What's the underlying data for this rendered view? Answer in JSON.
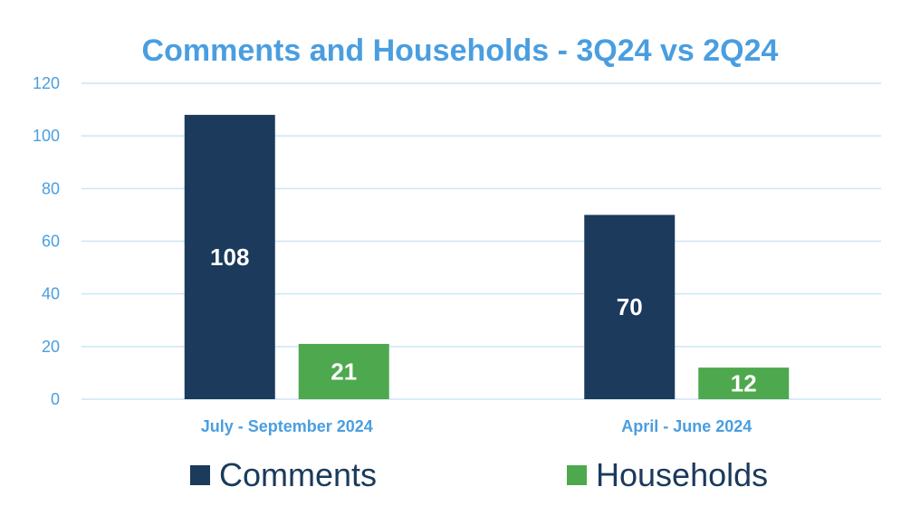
{
  "colors": {
    "title": "#4a9ee0",
    "axis_text": "#4a9ee0",
    "gridline": "#cbe6f4",
    "comments": "#1b3a5c",
    "households": "#4ea84e"
  },
  "chart_data": {
    "type": "bar",
    "title": "Comments and Households - 3Q24 vs 2Q24",
    "categories": [
      "July - September 2024",
      "April - June 2024"
    ],
    "series": [
      {
        "name": "Comments",
        "values": [
          108,
          70
        ],
        "labels": [
          "108",
          "70"
        ]
      },
      {
        "name": "Households",
        "values": [
          21,
          12
        ],
        "labels": [
          "21",
          "12"
        ]
      }
    ],
    "ylim": [
      0,
      120
    ],
    "yticks": [
      0,
      20,
      40,
      60,
      80,
      100,
      120
    ],
    "ytick_labels": [
      "0",
      "20",
      "40",
      "60",
      "80",
      "100",
      "120"
    ],
    "grid": true,
    "legend_position": "bottom"
  }
}
